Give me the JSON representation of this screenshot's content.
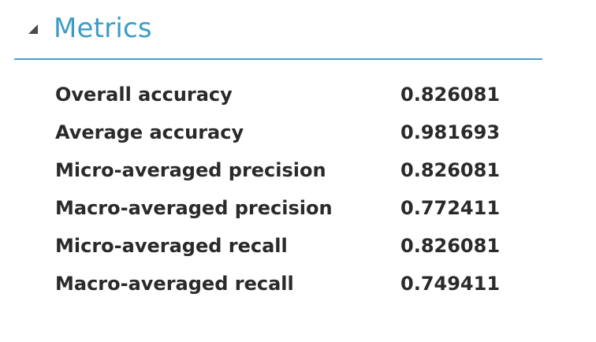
{
  "section": {
    "title": "Metrics",
    "expand_icon": "triangle-down-left-icon",
    "accent_color": "#3c9cc6",
    "divider_color": "#4aa0c8"
  },
  "metrics": [
    {
      "name": "Overall accuracy",
      "value": "0.826081"
    },
    {
      "name": "Average accuracy",
      "value": "0.981693"
    },
    {
      "name": "Micro-averaged precision",
      "value": "0.826081"
    },
    {
      "name": "Macro-averaged precision",
      "value": "0.772411"
    },
    {
      "name": "Micro-averaged recall",
      "value": "0.826081"
    },
    {
      "name": "Macro-averaged recall",
      "value": "0.749411"
    }
  ]
}
